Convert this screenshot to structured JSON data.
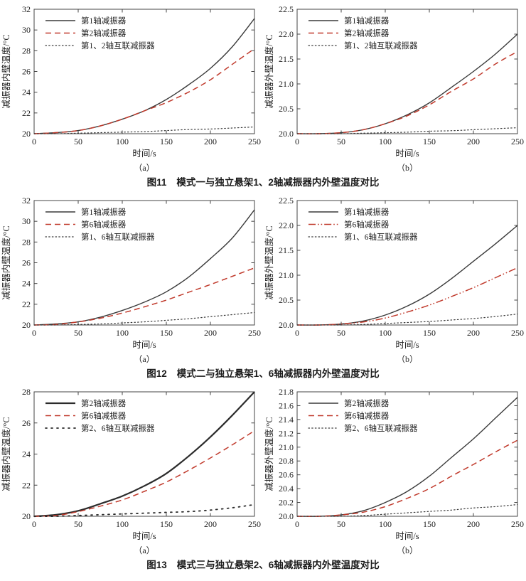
{
  "page": {
    "background": "#ffffff"
  },
  "colors": {
    "axis": "#444444",
    "text": "#222222",
    "series_red": "#c0392b",
    "series_black": "#3a3a3a",
    "caption_text": "#1a1a1a"
  },
  "captions": [
    {
      "no": "图11",
      "text": "模式一与独立悬架1、2轴减振器内外壁温度对比"
    },
    {
      "no": "图12",
      "text": "模式二与独立悬架1、6轴减振器内外壁温度对比"
    },
    {
      "no": "图13",
      "text": "模式三与独立悬架2、6轴减振器内外壁温度对比"
    }
  ],
  "chart_data": [
    {
      "id": "fig11a",
      "type": "line",
      "panel_label": "（a）",
      "xlabel": "时间/s",
      "ylabel": "减振器内壁温度/°C",
      "xlim": [
        0,
        250
      ],
      "ylim": [
        20,
        32
      ],
      "xticks": [
        0,
        50,
        100,
        150,
        200,
        250
      ],
      "yticks": [
        20,
        22,
        24,
        26,
        28,
        30,
        32
      ],
      "ytick_labels": [
        "20",
        "22",
        "24",
        "26",
        "28",
        "30",
        "32"
      ],
      "grid": false,
      "legend_position": "top-left",
      "x": [
        0,
        25,
        50,
        75,
        100,
        125,
        150,
        175,
        200,
        225,
        250
      ],
      "series": [
        {
          "name": "第1轴减振器",
          "style": "solid",
          "color": "#3a3a3a",
          "width": 1.4,
          "values": [
            20.0,
            20.1,
            20.3,
            20.75,
            21.4,
            22.2,
            23.3,
            24.7,
            26.3,
            28.4,
            31.1
          ]
        },
        {
          "name": "第2轴减振器",
          "style": "dashed",
          "color": "#c0392b",
          "width": 1.5,
          "values": [
            20.0,
            20.1,
            20.3,
            20.75,
            21.4,
            22.2,
            23.0,
            24.0,
            25.2,
            26.7,
            28.2
          ]
        },
        {
          "name": "第1、2轴互联减振器",
          "style": "dotted",
          "color": "#3a3a3a",
          "width": 1.2,
          "values": [
            20.0,
            20.0,
            20.05,
            20.1,
            20.15,
            20.2,
            20.3,
            20.4,
            20.45,
            20.55,
            20.65
          ]
        }
      ]
    },
    {
      "id": "fig11b",
      "type": "line",
      "panel_label": "（b）",
      "xlabel": "时间/s",
      "ylabel": "减振器外壁温度/°C",
      "xlim": [
        0,
        250
      ],
      "ylim": [
        20,
        22.5
      ],
      "xticks": [
        0,
        50,
        100,
        150,
        200,
        250
      ],
      "yticks": [
        20,
        20.5,
        21,
        21.5,
        22,
        22.5
      ],
      "ytick_labels": [
        "20.0",
        "20.5",
        "21.0",
        "21.5",
        "22.0",
        "22.5"
      ],
      "grid": false,
      "legend_position": "top-left",
      "x": [
        0,
        25,
        50,
        75,
        100,
        125,
        150,
        175,
        200,
        225,
        250
      ],
      "series": [
        {
          "name": "第1轴减振器",
          "style": "solid",
          "color": "#3a3a3a",
          "width": 1.4,
          "values": [
            20.0,
            20.0,
            20.02,
            20.08,
            20.2,
            20.38,
            20.62,
            20.93,
            21.25,
            21.6,
            22.0
          ]
        },
        {
          "name": "第2轴减振器",
          "style": "dashed",
          "color": "#c0392b",
          "width": 1.5,
          "values": [
            20.0,
            20.0,
            20.02,
            20.08,
            20.2,
            20.36,
            20.58,
            20.85,
            21.1,
            21.4,
            21.65
          ]
        },
        {
          "name": "第1、2轴互联减振器",
          "style": "dotted",
          "color": "#3a3a3a",
          "width": 1.2,
          "values": [
            20.0,
            20.0,
            20.0,
            20.01,
            20.02,
            20.03,
            20.05,
            20.06,
            20.08,
            20.1,
            20.12
          ]
        }
      ]
    },
    {
      "id": "fig12a",
      "type": "line",
      "panel_label": "（a）",
      "xlabel": "时间/s",
      "ylabel": "减振器内壁温度/°C",
      "xlim": [
        0,
        250
      ],
      "ylim": [
        20,
        32
      ],
      "xticks": [
        0,
        50,
        100,
        150,
        200,
        250
      ],
      "yticks": [
        20,
        22,
        24,
        26,
        28,
        30,
        32
      ],
      "ytick_labels": [
        "20",
        "22",
        "24",
        "26",
        "28",
        "30",
        "32"
      ],
      "grid": false,
      "legend_position": "top-left",
      "x": [
        0,
        25,
        50,
        75,
        100,
        125,
        150,
        175,
        200,
        225,
        250
      ],
      "series": [
        {
          "name": "第1轴减振器",
          "style": "solid",
          "color": "#3a3a3a",
          "width": 1.4,
          "values": [
            20.0,
            20.1,
            20.3,
            20.75,
            21.4,
            22.2,
            23.2,
            24.6,
            26.4,
            28.4,
            31.1
          ]
        },
        {
          "name": "第6轴减振器",
          "style": "dashed",
          "color": "#c0392b",
          "width": 1.5,
          "values": [
            20.0,
            20.05,
            20.3,
            20.65,
            21.15,
            21.75,
            22.4,
            23.15,
            23.9,
            24.7,
            25.5
          ]
        },
        {
          "name": "第1、6轴互联减振器",
          "style": "dotted",
          "color": "#3a3a3a",
          "width": 1.2,
          "values": [
            20.0,
            20.0,
            20.05,
            20.1,
            20.2,
            20.3,
            20.45,
            20.6,
            20.8,
            21.0,
            21.2
          ]
        }
      ]
    },
    {
      "id": "fig12b",
      "type": "line",
      "panel_label": "（b）",
      "xlabel": "时间/s",
      "ylabel": "减振器外壁温度/°C",
      "xlim": [
        0,
        250
      ],
      "ylim": [
        20,
        22.5
      ],
      "xticks": [
        0,
        50,
        100,
        150,
        200,
        250
      ],
      "yticks": [
        20,
        20.5,
        21,
        21.5,
        22,
        22.5
      ],
      "ytick_labels": [
        "20.0",
        "20.5",
        "21.0",
        "21.5",
        "22.0",
        "22.5"
      ],
      "grid": false,
      "legend_position": "top-left",
      "x": [
        0,
        25,
        50,
        75,
        100,
        125,
        150,
        175,
        200,
        225,
        250
      ],
      "series": [
        {
          "name": "第1轴减振器",
          "style": "solid",
          "color": "#3a3a3a",
          "width": 1.4,
          "values": [
            20.0,
            20.0,
            20.02,
            20.08,
            20.2,
            20.38,
            20.62,
            20.93,
            21.28,
            21.63,
            22.0
          ]
        },
        {
          "name": "第6轴减振器",
          "style": "dashdotdot",
          "color": "#c0392b",
          "width": 1.5,
          "values": [
            20.0,
            20.0,
            20.02,
            20.06,
            20.14,
            20.26,
            20.4,
            20.57,
            20.75,
            20.95,
            21.15
          ]
        },
        {
          "name": "第1、6轴互联减振器",
          "style": "dotted",
          "color": "#3a3a3a",
          "width": 1.2,
          "values": [
            20.0,
            20.0,
            20.0,
            20.01,
            20.03,
            20.05,
            20.07,
            20.1,
            20.13,
            20.17,
            20.22
          ]
        }
      ]
    },
    {
      "id": "fig13a",
      "type": "line",
      "panel_label": "（a）",
      "xlabel": "时间/s",
      "ylabel": "减振器内壁温度/°C",
      "xlim": [
        0,
        250
      ],
      "ylim": [
        20,
        28
      ],
      "xticks": [
        0,
        50,
        100,
        150,
        200,
        250
      ],
      "yticks": [
        20,
        22,
        24,
        26,
        28
      ],
      "ytick_labels": [
        "20",
        "22",
        "24",
        "26",
        "28"
      ],
      "grid": false,
      "legend_position": "top-left",
      "x": [
        0,
        25,
        50,
        75,
        100,
        125,
        150,
        175,
        200,
        225,
        250
      ],
      "series": [
        {
          "name": "第2轴减振器",
          "style": "solid",
          "color": "#2b2b2b",
          "width": 2.2,
          "values": [
            20.0,
            20.1,
            20.35,
            20.8,
            21.3,
            21.95,
            22.75,
            23.85,
            25.1,
            26.5,
            28.0
          ]
        },
        {
          "name": "第6轴减振器",
          "style": "dashed",
          "color": "#c0392b",
          "width": 1.5,
          "values": [
            20.0,
            20.05,
            20.3,
            20.65,
            21.05,
            21.6,
            22.2,
            22.95,
            23.75,
            24.6,
            25.5
          ]
        },
        {
          "name": "第2、6轴互联减振器",
          "style": "dottedsparse",
          "color": "#2b2b2b",
          "width": 1.8,
          "values": [
            20.0,
            20.0,
            20.05,
            20.1,
            20.15,
            20.2,
            20.25,
            20.3,
            20.4,
            20.55,
            20.75
          ]
        }
      ]
    },
    {
      "id": "fig13b",
      "type": "line",
      "panel_label": "（b）",
      "xlabel": "时间/s",
      "ylabel": "减振器外壁温度/°C",
      "xlim": [
        0,
        250
      ],
      "ylim": [
        20,
        21.8
      ],
      "xticks": [
        0,
        50,
        100,
        150,
        200,
        250
      ],
      "yticks": [
        20,
        20.2,
        20.4,
        20.6,
        20.8,
        21,
        21.2,
        21.4,
        21.6,
        21.8
      ],
      "ytick_labels": [
        "20.0",
        "20.2",
        "20.4",
        "20.6",
        "20.8",
        "21.0",
        "21.2",
        "21.4",
        "21.6",
        "21.8"
      ],
      "grid": false,
      "legend_position": "top-left",
      "x": [
        0,
        25,
        50,
        75,
        100,
        125,
        150,
        175,
        200,
        225,
        250
      ],
      "series": [
        {
          "name": "第2轴减振器",
          "style": "solid",
          "color": "#3a3a3a",
          "width": 1.4,
          "values": [
            20.0,
            20.0,
            20.02,
            20.08,
            20.2,
            20.36,
            20.58,
            20.85,
            21.12,
            21.42,
            21.72
          ]
        },
        {
          "name": "第6轴减振器",
          "style": "dashed",
          "color": "#c0392b",
          "width": 1.5,
          "values": [
            20.0,
            20.0,
            20.02,
            20.06,
            20.14,
            20.26,
            20.4,
            20.58,
            20.75,
            20.93,
            21.1
          ]
        },
        {
          "name": "第2、6轴互联减振器",
          "style": "dotted",
          "color": "#3a3a3a",
          "width": 1.2,
          "values": [
            20.0,
            20.0,
            20.0,
            20.01,
            20.03,
            20.05,
            20.07,
            20.09,
            20.12,
            20.14,
            20.17
          ]
        }
      ]
    }
  ]
}
